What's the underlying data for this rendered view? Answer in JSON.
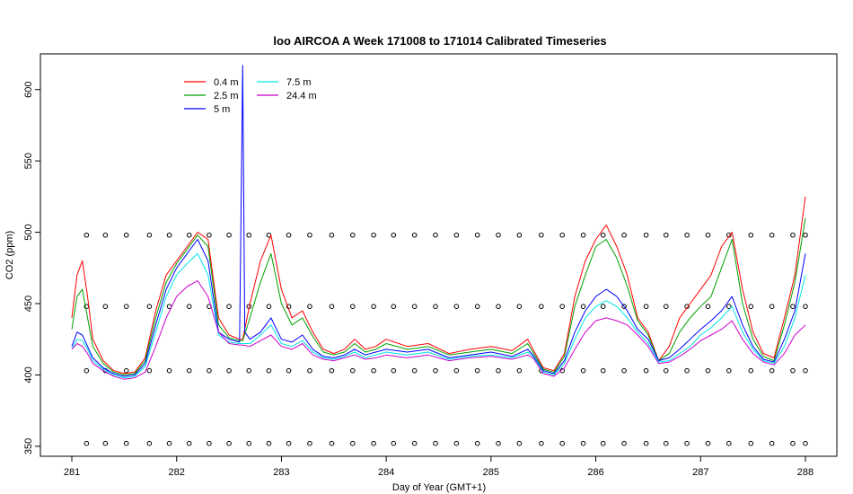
{
  "chart_data": {
    "type": "line",
    "title": "loo AIRCOA A  Week 171008 to 171014  Calibrated Timeseries",
    "xlabel": "Day of Year (GMT+1)",
    "ylabel": "CO2 (ppm)",
    "xlim": [
      280.7,
      288.3
    ],
    "ylim": [
      343,
      625
    ],
    "xticks": [
      281,
      282,
      283,
      284,
      285,
      286,
      287,
      288
    ],
    "yticks": [
      350,
      400,
      450,
      500,
      550,
      600
    ],
    "grid": false,
    "legend_position": "top-left",
    "series": [
      {
        "name": "0.4 m",
        "color": "#ff0000",
        "x": [
          281.0,
          281.05,
          281.1,
          281.15,
          281.2,
          281.3,
          281.4,
          281.5,
          281.6,
          281.7,
          281.8,
          281.9,
          282.0,
          282.1,
          282.2,
          282.3,
          282.4,
          282.5,
          282.6,
          282.63,
          282.7,
          282.8,
          282.9,
          283.0,
          283.1,
          283.2,
          283.3,
          283.4,
          283.5,
          283.6,
          283.7,
          283.8,
          283.9,
          284.0,
          284.2,
          284.4,
          284.6,
          284.8,
          285.0,
          285.2,
          285.35,
          285.4,
          285.5,
          285.6,
          285.7,
          285.8,
          285.9,
          286.0,
          286.1,
          286.2,
          286.3,
          286.4,
          286.5,
          286.6,
          286.7,
          286.8,
          286.9,
          287.0,
          287.1,
          287.2,
          287.3,
          287.4,
          287.5,
          287.6,
          287.7,
          287.8,
          287.9,
          288.0
        ],
        "y": [
          440,
          470,
          480,
          455,
          425,
          410,
          403,
          401,
          402,
          412,
          445,
          470,
          480,
          490,
          500,
          495,
          440,
          428,
          425,
          425,
          450,
          480,
          498,
          460,
          440,
          445,
          430,
          418,
          415,
          418,
          425,
          418,
          420,
          425,
          420,
          422,
          415,
          418,
          420,
          417,
          425,
          418,
          405,
          403,
          415,
          455,
          480,
          495,
          505,
          490,
          470,
          440,
          430,
          410,
          420,
          440,
          450,
          460,
          470,
          490,
          500,
          460,
          430,
          415,
          412,
          440,
          470,
          525
        ]
      },
      {
        "name": "2.5 m",
        "color": "#00a000",
        "x": [
          281.0,
          281.05,
          281.1,
          281.15,
          281.2,
          281.3,
          281.4,
          281.5,
          281.6,
          281.7,
          281.8,
          281.9,
          282.0,
          282.1,
          282.2,
          282.3,
          282.4,
          282.5,
          282.6,
          282.63,
          282.7,
          282.8,
          282.9,
          283.0,
          283.1,
          283.2,
          283.3,
          283.4,
          283.5,
          283.6,
          283.7,
          283.8,
          283.9,
          284.0,
          284.2,
          284.4,
          284.6,
          284.8,
          285.0,
          285.2,
          285.35,
          285.4,
          285.5,
          285.6,
          285.7,
          285.8,
          285.9,
          286.0,
          286.1,
          286.2,
          286.3,
          286.4,
          286.5,
          286.6,
          286.7,
          286.8,
          286.9,
          287.0,
          287.1,
          287.2,
          287.3,
          287.4,
          287.5,
          287.6,
          287.7,
          287.8,
          287.9,
          288.0
        ],
        "y": [
          432,
          455,
          460,
          440,
          420,
          408,
          402,
          400,
          401,
          410,
          440,
          465,
          478,
          488,
          498,
          490,
          435,
          426,
          424,
          424,
          440,
          465,
          485,
          450,
          435,
          440,
          427,
          416,
          414,
          416,
          422,
          416,
          418,
          422,
          418,
          420,
          414,
          416,
          418,
          415,
          422,
          416,
          404,
          402,
          413,
          448,
          470,
          490,
          495,
          482,
          462,
          438,
          428,
          410,
          415,
          430,
          440,
          448,
          455,
          475,
          495,
          450,
          425,
          413,
          410,
          435,
          465,
          510
        ]
      },
      {
        "name": "5 m",
        "color": "#0000ff",
        "x": [
          281.0,
          281.05,
          281.1,
          281.15,
          281.2,
          281.3,
          281.4,
          281.5,
          281.6,
          281.7,
          281.8,
          281.9,
          282.0,
          282.1,
          282.2,
          282.3,
          282.4,
          282.5,
          282.6,
          282.63,
          282.65,
          282.7,
          282.8,
          282.9,
          283.0,
          283.1,
          283.2,
          283.3,
          283.4,
          283.5,
          283.6,
          283.7,
          283.8,
          283.9,
          284.0,
          284.2,
          284.4,
          284.6,
          284.8,
          285.0,
          285.2,
          285.35,
          285.4,
          285.5,
          285.6,
          285.7,
          285.8,
          285.9,
          286.0,
          286.1,
          286.2,
          286.3,
          286.4,
          286.5,
          286.6,
          286.7,
          286.8,
          286.9,
          287.0,
          287.1,
          287.2,
          287.3,
          287.4,
          287.5,
          287.6,
          287.7,
          287.8,
          287.9,
          288.0
        ],
        "y": [
          420,
          430,
          428,
          420,
          412,
          405,
          401,
          399,
          400,
          408,
          435,
          460,
          475,
          485,
          495,
          480,
          430,
          425,
          423,
          617,
          430,
          425,
          430,
          440,
          425,
          423,
          428,
          418,
          413,
          412,
          414,
          418,
          414,
          416,
          418,
          416,
          418,
          412,
          414,
          416,
          413,
          418,
          414,
          403,
          401,
          410,
          430,
          445,
          455,
          460,
          455,
          445,
          432,
          425,
          410,
          412,
          418,
          425,
          432,
          438,
          445,
          455,
          435,
          420,
          411,
          409,
          425,
          445,
          485
        ]
      },
      {
        "name": "7.5 m",
        "color": "#00e5e5",
        "x": [
          281.0,
          281.05,
          281.1,
          281.15,
          281.2,
          281.3,
          281.4,
          281.5,
          281.6,
          281.7,
          281.8,
          281.9,
          282.0,
          282.1,
          282.2,
          282.3,
          282.4,
          282.5,
          282.6,
          282.63,
          282.7,
          282.8,
          282.9,
          283.0,
          283.1,
          283.2,
          283.3,
          283.4,
          283.5,
          283.6,
          283.7,
          283.8,
          283.9,
          284.0,
          284.2,
          284.4,
          284.6,
          284.8,
          285.0,
          285.2,
          285.35,
          285.4,
          285.5,
          285.6,
          285.7,
          285.8,
          285.9,
          286.0,
          286.1,
          286.2,
          286.3,
          286.4,
          286.5,
          286.6,
          286.7,
          286.8,
          286.9,
          287.0,
          287.1,
          287.2,
          287.3,
          287.4,
          287.5,
          287.6,
          287.7,
          287.8,
          287.9,
          288.0
        ],
        "y": [
          418,
          425,
          424,
          418,
          410,
          404,
          400,
          398,
          399,
          406,
          430,
          455,
          470,
          478,
          485,
          470,
          428,
          423,
          422,
          422,
          422,
          428,
          435,
          422,
          420,
          424,
          416,
          412,
          411,
          413,
          416,
          412,
          414,
          416,
          414,
          416,
          411,
          413,
          414,
          412,
          416,
          413,
          402,
          400,
          408,
          425,
          440,
          448,
          452,
          448,
          440,
          430,
          422,
          409,
          410,
          415,
          420,
          428,
          433,
          440,
          448,
          430,
          418,
          410,
          408,
          420,
          440,
          470
        ]
      },
      {
        "name": "24.4 m",
        "color": "#cc00cc",
        "x": [
          281.0,
          281.05,
          281.1,
          281.15,
          281.2,
          281.3,
          281.4,
          281.5,
          281.6,
          281.7,
          281.8,
          281.9,
          282.0,
          282.1,
          282.2,
          282.3,
          282.4,
          282.5,
          282.6,
          282.63,
          282.7,
          282.8,
          282.9,
          283.0,
          283.1,
          283.2,
          283.3,
          283.4,
          283.5,
          283.6,
          283.7,
          283.8,
          283.9,
          284.0,
          284.2,
          284.4,
          284.6,
          284.8,
          285.0,
          285.2,
          285.35,
          285.4,
          285.5,
          285.6,
          285.7,
          285.8,
          285.9,
          286.0,
          286.1,
          286.2,
          286.3,
          286.4,
          286.5,
          286.6,
          286.7,
          286.8,
          286.9,
          287.0,
          287.1,
          287.2,
          287.3,
          287.4,
          287.5,
          287.6,
          287.7,
          287.8,
          287.9,
          288.0
        ],
        "y": [
          418,
          422,
          420,
          415,
          408,
          403,
          399,
          397,
          398,
          402,
          420,
          440,
          455,
          462,
          466,
          455,
          430,
          422,
          421,
          421,
          420,
          424,
          428,
          420,
          418,
          422,
          414,
          411,
          410,
          412,
          414,
          411,
          412,
          414,
          412,
          414,
          410,
          412,
          413,
          411,
          414,
          412,
          401,
          399,
          405,
          418,
          430,
          438,
          440,
          438,
          435,
          428,
          420,
          408,
          409,
          413,
          418,
          424,
          428,
          432,
          438,
          425,
          415,
          409,
          407,
          415,
          428,
          435
        ]
      }
    ],
    "calibration_markers": {
      "marker": "open-circle",
      "color": "#000000",
      "levels": [
        498,
        448,
        403,
        352
      ],
      "x_values": [
        281.14,
        281.32,
        281.52,
        281.74,
        281.93,
        282.12,
        282.31,
        282.5,
        282.69,
        282.88,
        283.07,
        283.27,
        283.48,
        283.68,
        283.88,
        284.07,
        284.27,
        284.47,
        284.67,
        284.87,
        285.07,
        285.27,
        285.48,
        285.68,
        285.88,
        286.07,
        286.27,
        286.48,
        286.67,
        286.87,
        287.07,
        287.27,
        287.48,
        287.68,
        287.88,
        288.0
      ]
    }
  }
}
